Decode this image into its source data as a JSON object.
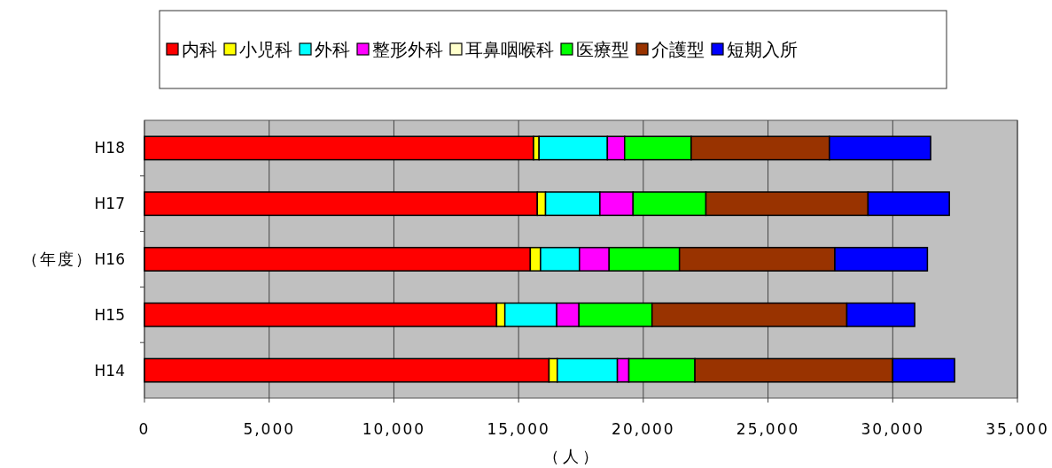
{
  "chart_data": {
    "type": "bar",
    "orientation": "horizontal",
    "stacked": true,
    "categories": [
      "H18",
      "H17",
      "H16",
      "H15",
      "H14"
    ],
    "series": [
      {
        "name": "内科",
        "color": "#ff0000",
        "values": [
          15600,
          15750,
          15470,
          14120,
          16220
        ]
      },
      {
        "name": "小児科",
        "color": "#ffff00",
        "values": [
          220,
          330,
          410,
          330,
          330
        ]
      },
      {
        "name": "外科",
        "color": "#00ffff",
        "values": [
          2740,
          2180,
          1560,
          2080,
          2410
        ]
      },
      {
        "name": "整形外科",
        "color": "#ff00ff",
        "values": [
          690,
          1330,
          1190,
          890,
          460
        ]
      },
      {
        "name": "耳鼻咽喉科",
        "color": "#ffffcc",
        "values": [
          0,
          0,
          0,
          0,
          0
        ]
      },
      {
        "name": "医療型",
        "color": "#00ff00",
        "values": [
          2670,
          2920,
          2820,
          2930,
          2650
        ]
      },
      {
        "name": "介護型",
        "color": "#993300",
        "values": [
          5540,
          6500,
          6230,
          7810,
          7930
        ]
      },
      {
        "name": "短期入所",
        "color": "#0000ff",
        "values": [
          4060,
          3260,
          3710,
          2720,
          2480
        ]
      }
    ],
    "xlim": [
      0,
      35000
    ],
    "xticks": [
      0,
      {
        "value": 5000,
        "label": "5,000"
      },
      {
        "value": 10000,
        "label": "10,000"
      },
      {
        "value": 15000,
        "label": "15,000"
      },
      {
        "value": 20000,
        "label": "20,000"
      },
      {
        "value": 25000,
        "label": "25,000"
      },
      {
        "value": 30000,
        "label": "30,000"
      },
      {
        "value": 35000,
        "label": "35,000"
      }
    ],
    "xlabel": "（人）",
    "ylabel": "（年度）",
    "grid": "x",
    "legend": "top"
  }
}
